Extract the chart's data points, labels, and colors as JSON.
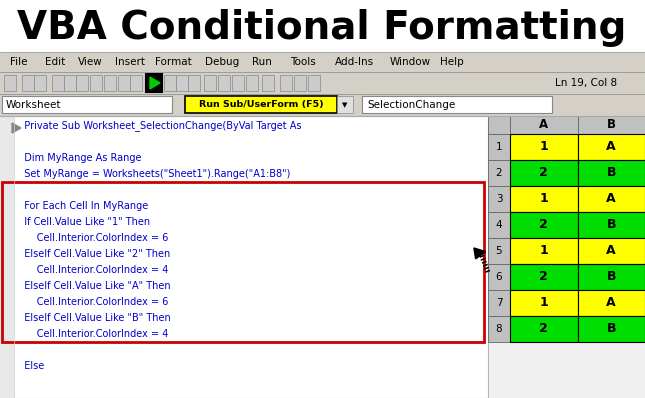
{
  "title": "VBA Conditional Formatting",
  "title_fontsize": 28,
  "title_fontweight": "bold",
  "bg_color": "#ffffff",
  "menu_items": [
    "File",
    "Edit",
    "View",
    "Insert",
    "Format",
    "Debug",
    "Run",
    "Tools",
    "Add-Ins",
    "Window",
    "Help"
  ],
  "menu_x_positions": [
    10,
    45,
    78,
    115,
    155,
    205,
    252,
    290,
    335,
    390,
    440
  ],
  "toolbar_text": "Ln 19, Col 8",
  "dropdown_left": "Worksheet",
  "dropdown_mid": "Run Sub/UserForm (F5)",
  "dropdown_right": "SelectionChange",
  "code_line1": "  Private Sub Worksheet_SelectionChange(ByVal Target As",
  "code_lines": [
    "",
    "  Dim MyRange As Range",
    "  Set MyRange = Worksheets(\"Sheet1\").Range(\"A1:B8\")",
    "",
    "  For Each Cell In MyRange",
    "  If Cell.Value Like \"1\" Then",
    "      Cell.Interior.ColorIndex = 6",
    "  ElseIf Cell.Value Like \"2\" Then",
    "      Cell.Interior.ColorIndex = 4",
    "  ElseIf Cell.Value Like \"A\" Then",
    "      Cell.Interior.ColorIndex = 6",
    "  ElseIf Cell.Value Like \"B\" Then",
    "      Cell.Interior.ColorIndex = 4",
    "",
    "  Else"
  ],
  "code_color": "#0000cc",
  "box_border_color": "#cc0000",
  "vba_editor_bg": "#ffffff",
  "menu_bar_bg": "#d4d0c8",
  "toolbar_bg": "#d4d0c8",
  "dropdown_bar_bg": "#d4d0c8",
  "dropdown_mid_bg": "#ffff00",
  "excel_header_bg": "#c0c0c0",
  "excel_header_text": "#000000",
  "excel_col_A": [
    "1",
    "2",
    "1",
    "2",
    "1",
    "2",
    "1",
    "2"
  ],
  "excel_col_B": [
    "A",
    "B",
    "A",
    "B",
    "A",
    "B",
    "A",
    "B"
  ],
  "col_A_colors": [
    "#ffff00",
    "#00dd00",
    "#ffff00",
    "#00dd00",
    "#ffff00",
    "#00dd00",
    "#ffff00",
    "#00dd00"
  ],
  "col_B_colors": [
    "#ffff00",
    "#00dd00",
    "#ffff00",
    "#00dd00",
    "#ffff00",
    "#00dd00",
    "#ffff00",
    "#00dd00"
  ],
  "excel_text_color": "#000000",
  "arrow_color": "#000000",
  "gutter_bg": "#e8e8e8"
}
